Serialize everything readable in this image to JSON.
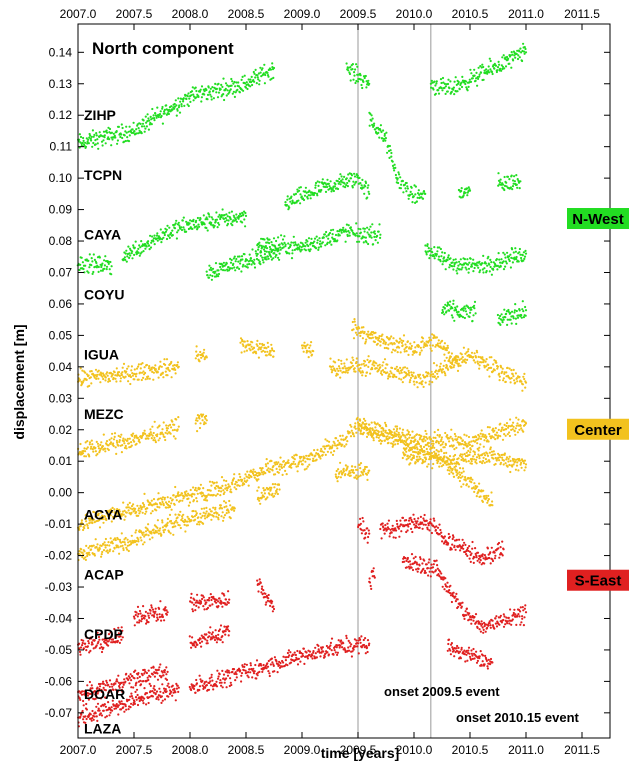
{
  "chart_data": {
    "type": "scatter",
    "title": "North component",
    "xlabel": "time [years]",
    "ylabel": "displacement [m]",
    "xlim": [
      2007.0,
      2011.75
    ],
    "ylim": [
      -0.078,
      0.149
    ],
    "x_ticks": [
      "2007.0",
      "2007.5",
      "2008.0",
      "2008.5",
      "2009.0",
      "2009.5",
      "2010.0",
      "2010.5",
      "2011.0",
      "2011.5"
    ],
    "y_ticks": [
      "0.14",
      "0.13",
      "0.12",
      "0.11",
      "0.10",
      "0.09",
      "0.08",
      "0.07",
      "0.06",
      "0.05",
      "0.04",
      "0.03",
      "0.02",
      "0.01",
      "0.00",
      "-0.01",
      "-0.02",
      "-0.03",
      "-0.04",
      "-0.05",
      "-0.06",
      "-0.07"
    ],
    "vertical_lines": [
      {
        "x": 2009.5,
        "label": "onset 2009.5 event"
      },
      {
        "x": 2010.15,
        "label": "onset 2010.15 event"
      }
    ],
    "regions": [
      {
        "name": "N-West",
        "color": "#22dd22",
        "y": 0.087
      },
      {
        "name": "Center",
        "color": "#f2c21e",
        "y": 0.02
      },
      {
        "name": "S-East",
        "color": "#e02020",
        "y": -0.028
      }
    ],
    "stations": [
      {
        "name": "ZIHP",
        "region": "N-West",
        "label_y": 0.12,
        "segments": [
          [
            [
              2007.0,
              0.111
            ],
            [
              2007.5,
              0.115
            ],
            [
              2008.0,
              0.126
            ],
            [
              2008.5,
              0.13
            ],
            [
              2008.75,
              0.135
            ]
          ],
          [
            [
              2009.4,
              0.135
            ],
            [
              2009.6,
              0.13
            ]
          ],
          [
            [
              2010.15,
              0.13
            ],
            [
              2010.3,
              0.128
            ],
            [
              2010.6,
              0.133
            ],
            [
              2011.0,
              0.14
            ]
          ]
        ]
      },
      {
        "name": "TCPN",
        "region": "N-West",
        "label_y": 0.101,
        "segments": [
          [
            [
              2008.85,
              0.092
            ],
            [
              2009.2,
              0.097
            ],
            [
              2009.5,
              0.1
            ],
            [
              2009.6,
              0.095
            ]
          ],
          [
            [
              2009.6,
              0.119
            ],
            [
              2009.75,
              0.112
            ],
            [
              2009.85,
              0.1
            ],
            [
              2010.0,
              0.094
            ],
            [
              2010.1,
              0.095
            ]
          ],
          [
            [
              2010.4,
              0.095
            ],
            [
              2010.5,
              0.096
            ]
          ],
          [
            [
              2010.75,
              0.098
            ],
            [
              2010.95,
              0.099
            ]
          ]
        ]
      },
      {
        "name": "CAYA",
        "region": "N-West",
        "label_y": 0.082,
        "segments": [
          [
            [
              2007.0,
              0.073
            ],
            [
              2007.3,
              0.072
            ]
          ],
          [
            [
              2007.4,
              0.075
            ],
            [
              2007.8,
              0.083
            ],
            [
              2008.0,
              0.085
            ],
            [
              2008.3,
              0.087
            ],
            [
              2008.5,
              0.088
            ]
          ],
          [
            [
              2008.6,
              0.079
            ],
            [
              2009.0,
              0.078
            ],
            [
              2009.4,
              0.083
            ],
            [
              2009.5,
              0.082
            ],
            [
              2009.7,
              0.082
            ]
          ],
          [
            [
              2010.1,
              0.078
            ],
            [
              2010.3,
              0.073
            ],
            [
              2010.6,
              0.072
            ],
            [
              2011.0,
              0.076
            ]
          ]
        ]
      },
      {
        "name": "COYU",
        "region": "N-West",
        "label_y": 0.063,
        "segments": [
          [
            [
              2008.15,
              0.07
            ],
            [
              2008.5,
              0.074
            ],
            [
              2008.8,
              0.076
            ]
          ],
          [
            [
              2010.25,
              0.058
            ],
            [
              2010.55,
              0.057
            ]
          ],
          [
            [
              2010.75,
              0.055
            ],
            [
              2011.0,
              0.058
            ]
          ]
        ]
      },
      {
        "name": "IGUA",
        "region": "Center",
        "label_y": 0.044,
        "segments": [
          [
            [
              2007.0,
              0.036
            ],
            [
              2007.5,
              0.038
            ],
            [
              2007.9,
              0.04
            ]
          ],
          [
            [
              2008.05,
              0.044
            ],
            [
              2008.15,
              0.043
            ]
          ],
          [
            [
              2008.45,
              0.047
            ],
            [
              2008.75,
              0.045
            ]
          ],
          [
            [
              2009.0,
              0.046
            ],
            [
              2009.1,
              0.045
            ]
          ],
          [
            [
              2009.45,
              0.053
            ],
            [
              2009.7,
              0.048
            ],
            [
              2010.0,
              0.046
            ],
            [
              2010.2,
              0.048
            ],
            [
              2010.4,
              0.041
            ]
          ],
          [
            [
              2009.25,
              0.04
            ],
            [
              2009.6,
              0.04
            ],
            [
              2010.1,
              0.036
            ],
            [
              2010.5,
              0.044
            ],
            [
              2010.7,
              0.04
            ],
            [
              2011.0,
              0.035
            ]
          ]
        ]
      },
      {
        "name": "MEZC",
        "region": "Center",
        "label_y": 0.025,
        "segments": [
          [
            [
              2007.0,
              0.013
            ],
            [
              2007.5,
              0.017
            ],
            [
              2007.9,
              0.021
            ]
          ],
          [
            [
              2008.05,
              0.023
            ],
            [
              2008.15,
              0.023
            ]
          ],
          [
            [
              2009.5,
              0.021
            ],
            [
              2010.0,
              0.017
            ],
            [
              2010.5,
              0.016
            ],
            [
              2011.0,
              0.022
            ]
          ],
          [
            [
              2009.9,
              0.012
            ],
            [
              2010.3,
              0.01
            ],
            [
              2010.6,
              0.012
            ],
            [
              2011.0,
              0.009
            ]
          ]
        ]
      },
      {
        "name": "ACYA",
        "region": "Center",
        "label_y": -0.007,
        "segments": [
          [
            [
              2007.0,
              -0.01
            ],
            [
              2007.4,
              -0.006
            ],
            [
              2007.9,
              -0.002
            ],
            [
              2008.4,
              0.003
            ],
            [
              2008.7,
              0.008
            ],
            [
              2009.0,
              0.01
            ],
            [
              2009.3,
              0.015
            ],
            [
              2009.5,
              0.021
            ],
            [
              2009.8,
              0.018
            ],
            [
              2010.2,
              0.012
            ],
            [
              2010.5,
              0.003
            ],
            [
              2010.7,
              -0.004
            ]
          ],
          [
            [
              2007.0,
              -0.02
            ],
            [
              2007.5,
              -0.015
            ],
            [
              2008.0,
              -0.008
            ],
            [
              2008.4,
              -0.005
            ]
          ],
          [
            [
              2008.6,
              -0.001
            ],
            [
              2008.8,
              0.001
            ]
          ],
          [
            [
              2009.3,
              0.006
            ],
            [
              2009.6,
              0.007
            ]
          ]
        ]
      },
      {
        "name": "ACAP",
        "region": "S-East",
        "label_y": -0.026,
        "segments": [
          [
            [
              2009.5,
              -0.01
            ],
            [
              2009.6,
              -0.013
            ]
          ],
          [
            [
              2009.6,
              -0.028
            ],
            [
              2009.65,
              -0.027
            ]
          ],
          [
            [
              2009.9,
              -0.022
            ],
            [
              2010.2,
              -0.024
            ],
            [
              2010.4,
              -0.036
            ],
            [
              2010.6,
              -0.043
            ],
            [
              2010.8,
              -0.04
            ],
            [
              2011.0,
              -0.038
            ]
          ]
        ]
      },
      {
        "name": "CPDP",
        "region": "S-East",
        "label_y": -0.045,
        "segments": [
          [
            [
              2007.0,
              -0.049
            ],
            [
              2007.4,
              -0.046
            ]
          ],
          [
            [
              2007.5,
              -0.039
            ],
            [
              2007.8,
              -0.038
            ]
          ],
          [
            [
              2008.0,
              -0.035
            ],
            [
              2008.35,
              -0.034
            ]
          ],
          [
            [
              2008.0,
              -0.048
            ],
            [
              2008.35,
              -0.044
            ]
          ],
          [
            [
              2008.6,
              -0.028
            ],
            [
              2008.75,
              -0.037
            ]
          ],
          [
            [
              2009.7,
              -0.012
            ],
            [
              2010.1,
              -0.009
            ],
            [
              2010.3,
              -0.015
            ],
            [
              2010.6,
              -0.021
            ],
            [
              2010.8,
              -0.018
            ]
          ],
          [
            [
              2010.3,
              -0.049
            ],
            [
              2010.5,
              -0.052
            ],
            [
              2010.7,
              -0.054
            ]
          ]
        ]
      },
      {
        "name": "DOAR",
        "region": "S-East",
        "label_y": -0.064,
        "segments": [
          [
            [
              2007.0,
              -0.065
            ],
            [
              2007.4,
              -0.06
            ],
            [
              2007.8,
              -0.057
            ]
          ],
          [
            [
              2008.0,
              -0.062
            ],
            [
              2008.4,
              -0.058
            ],
            [
              2008.9,
              -0.053
            ],
            [
              2009.2,
              -0.05
            ],
            [
              2009.6,
              -0.048
            ]
          ]
        ]
      },
      {
        "name": "LAZA",
        "region": "S-East",
        "label_y": -0.075,
        "segments": [
          [
            [
              2007.0,
              -0.072
            ],
            [
              2007.5,
              -0.066
            ],
            [
              2007.9,
              -0.062
            ]
          ]
        ]
      }
    ]
  }
}
